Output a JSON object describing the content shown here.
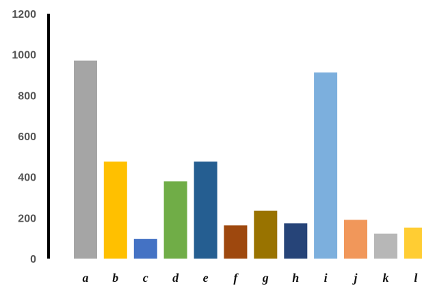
{
  "chart_data": {
    "type": "bar",
    "title": "",
    "xlabel": "",
    "ylabel": "",
    "ylim": [
      0,
      1200
    ],
    "yticks": [
      0,
      200,
      400,
      600,
      800,
      1000,
      1200
    ],
    "grid": false,
    "legend": "none",
    "categories": [
      "a",
      "b",
      "c",
      "d",
      "e",
      "f",
      "g",
      "h",
      "i",
      "j",
      "k",
      "l"
    ],
    "values": [
      970,
      475,
      97,
      378,
      475,
      163,
      235,
      173,
      912,
      190,
      122,
      152
    ],
    "colors": [
      "#a5a5a5",
      "#ffc000",
      "#4472c4",
      "#70ad47",
      "#255e91",
      "#9e480e",
      "#997300",
      "#264478",
      "#7cafdd",
      "#f1975a",
      "#b7b7b7",
      "#ffcd33"
    ]
  }
}
